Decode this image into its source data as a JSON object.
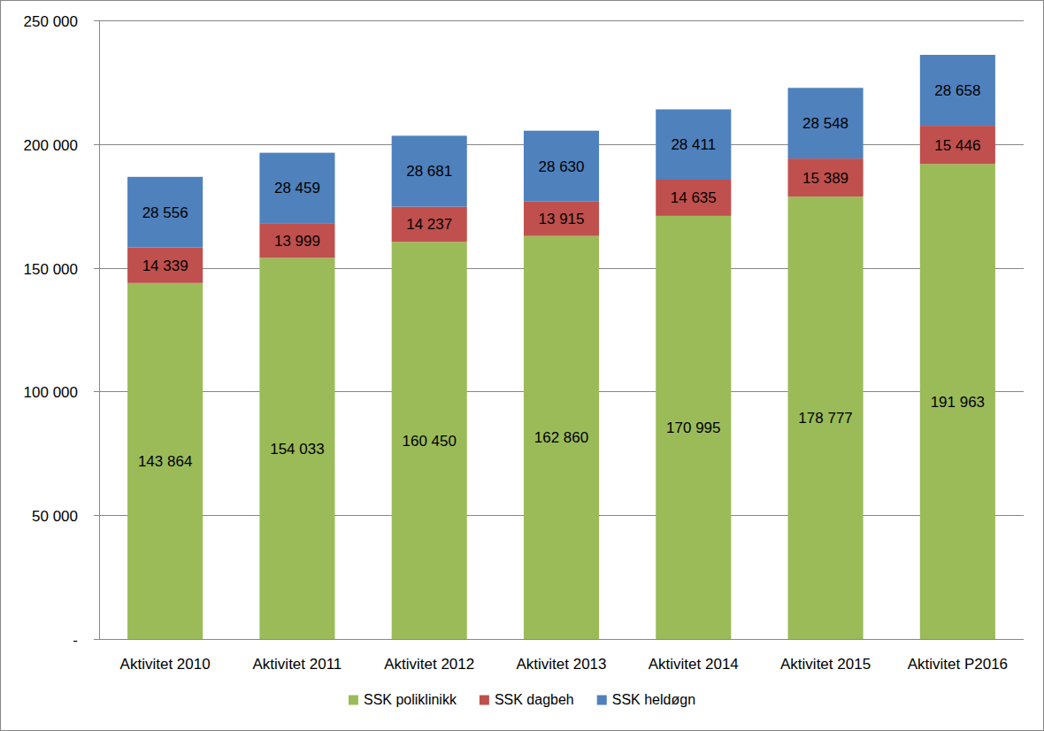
{
  "chart_data": {
    "type": "bar",
    "stacked": true,
    "data_labels": true,
    "grid": true,
    "legend": "bottom",
    "categories": [
      "Aktivitet 2010",
      "Aktivitet 2011",
      "Aktivitet 2012",
      "Aktivitet 2013",
      "Aktivitet 2014",
      "Aktivitet 2015",
      "Aktivitet P2016"
    ],
    "series": [
      {
        "name": "SSK poliklinikk",
        "color": "#9bbb59",
        "values": [
          143864,
          154033,
          160450,
          162860,
          170995,
          178777,
          191963
        ],
        "value_labels": [
          "143 864",
          "154 033",
          "160 450",
          "162 860",
          "170 995",
          "178 777",
          "191 963"
        ]
      },
      {
        "name": "SSK dagbeh",
        "color": "#c0504d",
        "values": [
          14339,
          13999,
          14237,
          13915,
          14635,
          15389,
          15446
        ],
        "value_labels": [
          "14 339",
          "13 999",
          "14 237",
          "13 915",
          "14 635",
          "15 389",
          "15 446"
        ]
      },
      {
        "name": "SSK heldøgn",
        "color": "#4f81bd",
        "values": [
          28556,
          28459,
          28681,
          28630,
          28411,
          28548,
          28658
        ],
        "value_labels": [
          "28 556",
          "28 459",
          "28 681",
          "28 630",
          "28 411",
          "28 548",
          "28 658"
        ]
      }
    ],
    "ylim": [
      0,
      250000
    ],
    "yticks": [
      {
        "value": 0,
        "label": "-"
      },
      {
        "value": 50000,
        "label": "50 000"
      },
      {
        "value": 100000,
        "label": "100 000"
      },
      {
        "value": 150000,
        "label": "150 000"
      },
      {
        "value": 200000,
        "label": "200 000"
      },
      {
        "value": 250000,
        "label": "250 000"
      }
    ]
  }
}
